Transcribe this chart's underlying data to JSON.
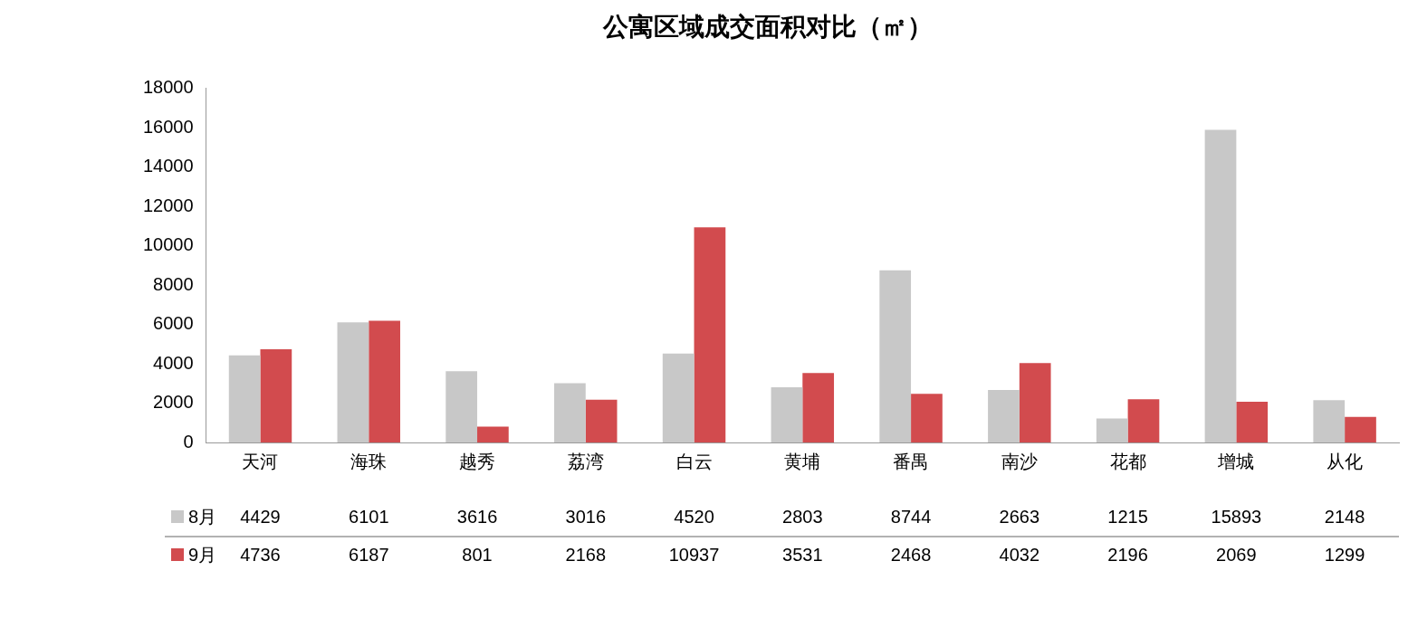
{
  "chart_data": {
    "type": "bar",
    "title": "公寓区域成交面积对比（㎡）",
    "categories": [
      "天河",
      "海珠",
      "越秀",
      "荔湾",
      "白云",
      "黄埔",
      "番禺",
      "南沙",
      "花都",
      "增城",
      "从化"
    ],
    "series": [
      {
        "name": "8月",
        "color": "#c8c8c8",
        "values": [
          4429,
          6101,
          3616,
          3016,
          4520,
          2803,
          8744,
          2663,
          1215,
          15893,
          2148
        ]
      },
      {
        "name": "9月",
        "color": "#d24b4e",
        "values": [
          4736,
          6187,
          801,
          2168,
          10937,
          3531,
          2468,
          4032,
          2196,
          2069,
          1299
        ]
      }
    ],
    "ylim": [
      0,
      18000
    ],
    "yticks": [
      0,
      2000,
      4000,
      6000,
      8000,
      10000,
      12000,
      14000,
      16000,
      18000
    ],
    "data_labels": true,
    "legend": "bottom"
  }
}
